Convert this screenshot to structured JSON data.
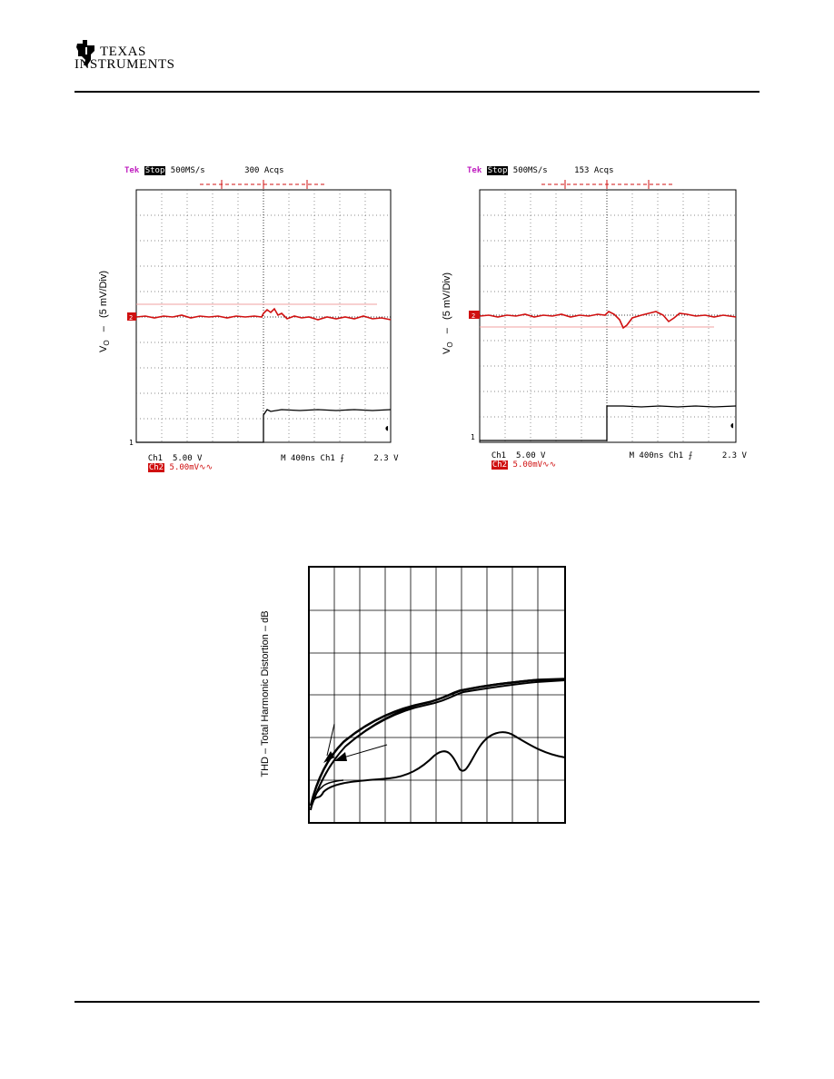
{
  "header": {
    "logo_line1": "Texas",
    "logo_line2": "Instruments"
  },
  "scope_left": {
    "brand": "Tek",
    "state": "Stop",
    "rate": "500MS/s",
    "acqs": "300 Acqs",
    "ylabel_v": "V",
    "ylabel_sub": "O",
    "ylabel_rest": "(5 mV/Div)",
    "ch2_marker": "2",
    "ch1_marker": "1",
    "foot_ch1": "Ch1",
    "foot_ch1_val": "5.00 V",
    "foot_ch2": "Ch2",
    "foot_ch2_val": "5.00mV∿∿",
    "foot_time": "M 400ns",
    "foot_trig": "Ch1 ⨍",
    "foot_level": "2.3 V"
  },
  "scope_right": {
    "brand": "Tek",
    "state": "Stop",
    "rate": "500MS/s",
    "acqs": "153 Acqs",
    "ylabel_v": "V",
    "ylabel_sub": "O",
    "ylabel_rest": "(5 mV/Div)",
    "ch2_marker": "2",
    "ch1_marker": "1",
    "foot_ch1": "Ch1",
    "foot_ch1_val": "5.00 V",
    "foot_ch2": "Ch2",
    "foot_ch2_val": "5.00mV∿∿",
    "foot_time": "M 400ns",
    "foot_trig": "Ch1 ⨍",
    "foot_level": "2.3 V"
  },
  "thd_chart": {
    "ylabel": "THD – Total Harmonic Distortion – dB"
  },
  "colors": {
    "trace_red": "#d01010",
    "trace_black": "#000000",
    "brand_magenta": "#c020c0"
  }
}
